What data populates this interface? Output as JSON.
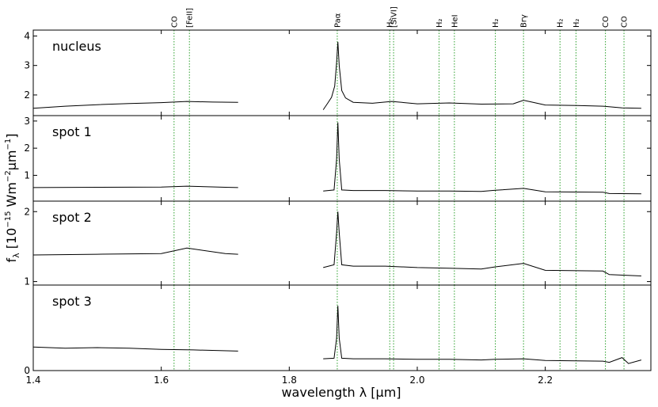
{
  "chart_data": {
    "type": "line",
    "xlabel": "wavelength λ [μm]",
    "ylabel": "f",
    "ylabel_subscript": "λ",
    "ylabel_unit_a": " [10",
    "ylabel_unit_exp1": "−15",
    "ylabel_unit_b": " Wm",
    "ylabel_unit_exp2": "−2",
    "ylabel_unit_c": "μm",
    "ylabel_unit_exp3": "−1",
    "ylabel_unit_d": "]",
    "xlim": [
      1.4,
      2.365
    ],
    "xticks": [
      {
        "value": 1.4,
        "label": "1.4"
      },
      {
        "value": 1.6,
        "label": "1.6"
      },
      {
        "value": 1.8,
        "label": "1.8"
      },
      {
        "value": 2.0,
        "label": "2.0"
      },
      {
        "value": 2.2,
        "label": "2.2"
      }
    ],
    "grid": false,
    "line_color": "#000000",
    "marker_line_color": "#2ca02c",
    "marker_lines": [
      {
        "value": 1.62,
        "label": "CO"
      },
      {
        "value": 1.644,
        "label": "[FeII]"
      },
      {
        "value": 1.875,
        "label": "Paα"
      },
      {
        "value": 1.957,
        "label": "H₂"
      },
      {
        "value": 1.963,
        "label": "[SiVI]"
      },
      {
        "value": 2.034,
        "label": "H₂"
      },
      {
        "value": 2.058,
        "label": "HeI"
      },
      {
        "value": 2.122,
        "label": "H₂"
      },
      {
        "value": 2.166,
        "label": "Brγ"
      },
      {
        "value": 2.223,
        "label": "H₂"
      },
      {
        "value": 2.248,
        "label": "H₂"
      },
      {
        "value": 2.294,
        "label": "CO"
      },
      {
        "value": 2.323,
        "label": "CO"
      }
    ],
    "panels": [
      {
        "name": "nucleus",
        "ylim": [
          1.3,
          4.2
        ],
        "yticks": [
          {
            "value": 2,
            "label": "2"
          },
          {
            "value": 3,
            "label": "3"
          },
          {
            "value": 4,
            "label": "4"
          }
        ],
        "segments": [
          {
            "x": [
              1.4,
              1.45,
              1.5,
              1.55,
              1.6,
              1.64,
              1.68,
              1.72
            ],
            "y": [
              1.55,
              1.62,
              1.67,
              1.71,
              1.74,
              1.78,
              1.76,
              1.75
            ]
          },
          {
            "x": [
              1.853,
              1.86,
              1.866,
              1.871,
              1.874,
              1.876,
              1.878,
              1.882,
              1.888,
              1.9,
              1.93,
              1.96,
              2.0,
              2.05,
              2.1,
              2.15,
              2.166,
              2.2,
              2.25,
              2.29,
              2.32,
              2.35
            ],
            "y": [
              1.5,
              1.72,
              1.92,
              2.3,
              3.1,
              3.8,
              3.0,
              2.15,
              1.9,
              1.75,
              1.72,
              1.78,
              1.7,
              1.73,
              1.69,
              1.7,
              1.82,
              1.66,
              1.64,
              1.62,
              1.56,
              1.55
            ]
          }
        ]
      },
      {
        "name": "spot 1",
        "ylim": [
          0.05,
          3.2
        ],
        "yticks": [
          {
            "value": 1,
            "label": "1"
          },
          {
            "value": 2,
            "label": "2"
          },
          {
            "value": 3,
            "label": "3"
          }
        ],
        "segments": [
          {
            "x": [
              1.4,
              1.5,
              1.6,
              1.64,
              1.7,
              1.72
            ],
            "y": [
              0.55,
              0.56,
              0.57,
              0.6,
              0.56,
              0.55
            ]
          },
          {
            "x": [
              1.853,
              1.87,
              1.874,
              1.876,
              1.878,
              1.882,
              1.9,
              1.95,
              2.0,
              2.05,
              2.1,
              2.122,
              2.166,
              2.2,
              2.29,
              2.3,
              2.35
            ],
            "y": [
              0.42,
              0.46,
              1.6,
              2.95,
              1.6,
              0.46,
              0.44,
              0.44,
              0.42,
              0.42,
              0.41,
              0.45,
              0.52,
              0.39,
              0.38,
              0.33,
              0.32
            ]
          }
        ]
      },
      {
        "name": "spot 2",
        "ylim": [
          0.95,
          2.15
        ],
        "yticks": [
          {
            "value": 1,
            "label": "1"
          },
          {
            "value": 2,
            "label": "2"
          }
        ],
        "segments": [
          {
            "x": [
              1.4,
              1.5,
              1.6,
              1.64,
              1.7,
              1.72
            ],
            "y": [
              1.38,
              1.39,
              1.4,
              1.48,
              1.4,
              1.39
            ]
          },
          {
            "x": [
              1.853,
              1.87,
              1.874,
              1.876,
              1.878,
              1.882,
              1.9,
              1.95,
              2.0,
              2.05,
              2.1,
              2.122,
              2.166,
              2.2,
              2.29,
              2.3,
              2.35
            ],
            "y": [
              1.2,
              1.24,
              1.7,
              2.0,
              1.7,
              1.24,
              1.22,
              1.22,
              1.2,
              1.19,
              1.18,
              1.21,
              1.26,
              1.16,
              1.15,
              1.1,
              1.08
            ]
          }
        ]
      },
      {
        "name": "spot 3",
        "ylim": [
          0.0,
          1.45
        ],
        "yticks": [
          {
            "value": 0,
            "label": "0"
          }
        ],
        "segments": [
          {
            "x": [
              1.4,
              1.45,
              1.5,
              1.55,
              1.6,
              1.65,
              1.72
            ],
            "y": [
              0.4,
              0.38,
              0.39,
              0.38,
              0.36,
              0.35,
              0.33
            ]
          },
          {
            "x": [
              1.853,
              1.87,
              1.874,
              1.876,
              1.878,
              1.882,
              1.9,
              1.95,
              2.0,
              2.05,
              2.1,
              2.122,
              2.166,
              2.2,
              2.29,
              2.3,
              2.32,
              2.33,
              2.35
            ],
            "y": [
              0.2,
              0.21,
              0.55,
              1.1,
              0.55,
              0.21,
              0.2,
              0.2,
              0.19,
              0.19,
              0.18,
              0.19,
              0.2,
              0.17,
              0.16,
              0.14,
              0.22,
              0.12,
              0.18
            ]
          }
        ]
      }
    ]
  }
}
